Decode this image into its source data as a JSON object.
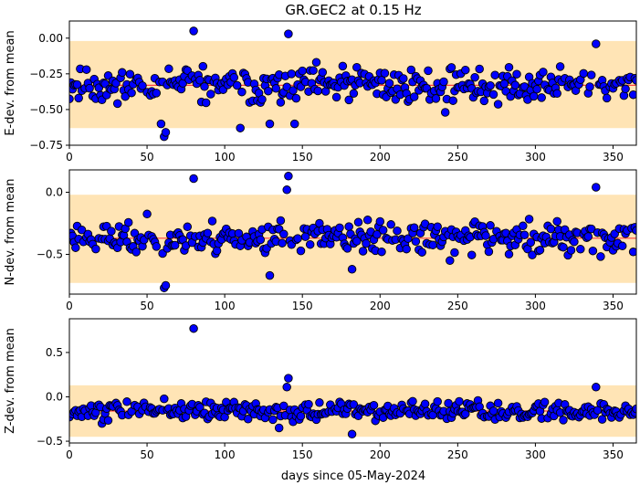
{
  "title": "GR.GEC2 at 0.15 Hz",
  "xlabel": "days since 05-May-2024",
  "colors": {
    "band": "#ffe4b5",
    "marker_fill": "#0000ff",
    "marker_edge": "#000000",
    "mean_line": "#ff4040"
  },
  "chart_data": [
    {
      "type": "scatter",
      "name": "E",
      "ylabel": "E-dev. from mean",
      "xlim": [
        0,
        365
      ],
      "ylim": [
        -0.75,
        0.12
      ],
      "xticks": [
        0,
        50,
        100,
        150,
        200,
        250,
        300,
        350
      ],
      "yticks": [
        0.0,
        -0.25,
        -0.5,
        -0.75
      ],
      "ytick_labels": [
        "0.00",
        "−0.25",
        "−0.50",
        "−0.75"
      ],
      "band": [
        -0.63,
        -0.02
      ],
      "mean": -0.33,
      "base": -0.33,
      "noise": 0.06,
      "seed": 11,
      "outliers": [
        [
          80,
          0.05
        ],
        [
          141,
          0.03
        ],
        [
          61,
          -0.69
        ],
        [
          62,
          -0.66
        ],
        [
          59,
          -0.6
        ],
        [
          57,
          -0.55
        ],
        [
          339,
          -0.04
        ],
        [
          110,
          -0.63
        ],
        [
          129,
          -0.6
        ],
        [
          145,
          -0.6
        ],
        [
          242,
          -0.52
        ]
      ]
    },
    {
      "type": "scatter",
      "name": "N",
      "ylabel": "N-dev. from mean",
      "xlim": [
        0,
        365
      ],
      "ylim": [
        -0.82,
        0.18
      ],
      "xticks": [
        0,
        50,
        100,
        150,
        200,
        250,
        300,
        350
      ],
      "yticks": [
        0.0,
        -0.5
      ],
      "ytick_labels": [
        "0.0",
        "−0.5"
      ],
      "band": [
        -0.73,
        -0.02
      ],
      "mean": -0.37,
      "base": -0.37,
      "noise": 0.07,
      "seed": 23,
      "outliers": [
        [
          80,
          0.11
        ],
        [
          141,
          0.13
        ],
        [
          140,
          0.02
        ],
        [
          339,
          0.04
        ],
        [
          61,
          -0.77
        ],
        [
          62,
          -0.75
        ],
        [
          58,
          -0.65
        ],
        [
          129,
          -0.67
        ],
        [
          182,
          -0.62
        ],
        [
          245,
          -0.55
        ]
      ]
    },
    {
      "type": "scatter",
      "name": "Z",
      "ylabel": "Z-dev. from mean",
      "xlim": [
        0,
        365
      ],
      "ylim": [
        -0.52,
        0.88
      ],
      "xticks": [
        0,
        50,
        100,
        150,
        200,
        250,
        300,
        350
      ],
      "yticks": [
        0.5,
        0.0,
        -0.5
      ],
      "ytick_labels": [
        "0.5",
        "0.0",
        "−0.5"
      ],
      "band": [
        -0.45,
        0.13
      ],
      "mean": -0.16,
      "base": -0.16,
      "noise": 0.05,
      "seed": 37,
      "outliers": [
        [
          80,
          0.77
        ],
        [
          141,
          0.21
        ],
        [
          140,
          0.11
        ],
        [
          339,
          0.11
        ],
        [
          62,
          -0.38
        ],
        [
          182,
          -0.42
        ],
        [
          135,
          -0.35
        ],
        [
          21,
          -0.3
        ]
      ]
    }
  ]
}
